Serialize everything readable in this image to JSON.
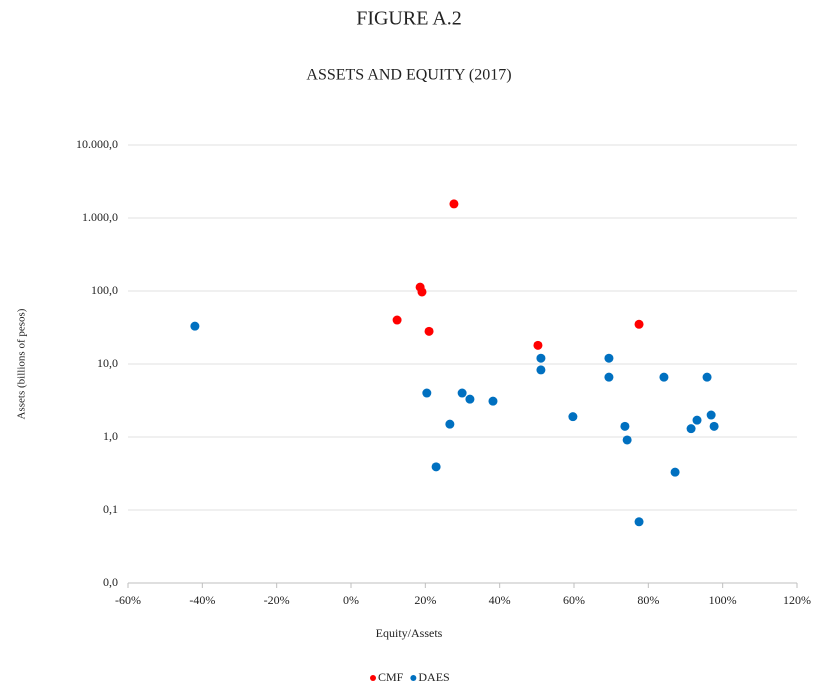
{
  "chart_data": {
    "type": "scatter",
    "title": "FIGURE A.2",
    "subtitle": "ASSETS AND EQUITY (2017)",
    "x_label": "Equity/Assets",
    "y_label": "Assets (billions of pesos)",
    "log_y": true,
    "grid": true,
    "legend": "bottom",
    "xlim": [
      -60,
      120
    ],
    "xticks": [
      {
        "value": -60,
        "label": "-60%"
      },
      {
        "value": -40,
        "label": "-40%"
      },
      {
        "value": -20,
        "label": "-20%"
      },
      {
        "value": 0,
        "label": "0%"
      },
      {
        "value": 20,
        "label": "20%"
      },
      {
        "value": 40,
        "label": "40%"
      },
      {
        "value": 60,
        "label": "60%"
      },
      {
        "value": 80,
        "label": "80%"
      },
      {
        "value": 100,
        "label": "100%"
      },
      {
        "value": 120,
        "label": "120%"
      }
    ],
    "ylim": [
      0.01,
      10000
    ],
    "yticks": [
      {
        "value": 0.01,
        "label": "0,0"
      },
      {
        "value": 0.1,
        "label": "0,1"
      },
      {
        "value": 1,
        "label": "1,0"
      },
      {
        "value": 10,
        "label": "10,0"
      },
      {
        "value": 100,
        "label": "100,0"
      },
      {
        "value": 1000,
        "label": "1.000,0"
      },
      {
        "value": 10000,
        "label": "10.000,0"
      }
    ],
    "series": [
      {
        "name": "CMF",
        "color": "#ff0000",
        "x": [
          12.4,
          18.6,
          19.1,
          21.0,
          27.7,
          50.3,
          77.5
        ],
        "values": [
          40,
          113,
          97,
          28,
          1560,
          18,
          35
        ]
      },
      {
        "name": "DAES",
        "color": "#0070c0",
        "x": [
          -42.0,
          20.4,
          22.9,
          26.6,
          29.9,
          32.0,
          38.2,
          51.1,
          51.1,
          59.7,
          69.4,
          69.4,
          73.7,
          74.3,
          77.5,
          84.2,
          87.2,
          91.5,
          93.1,
          95.8,
          96.9,
          97.7
        ],
        "values": [
          33,
          4.0,
          0.39,
          1.5,
          4.0,
          3.3,
          3.1,
          12,
          8.3,
          1.9,
          12,
          6.6,
          1.4,
          0.91,
          0.069,
          6.6,
          0.33,
          1.3,
          1.7,
          6.6,
          2.0,
          1.4
        ]
      }
    ]
  }
}
